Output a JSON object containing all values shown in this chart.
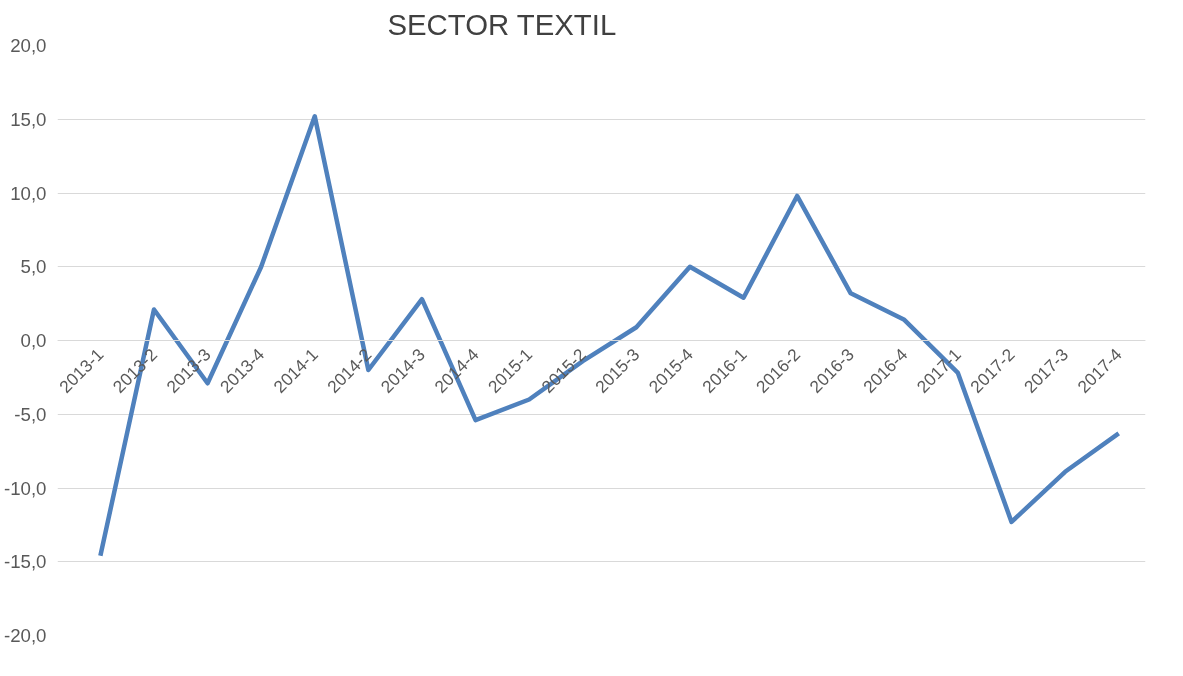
{
  "chart_data": {
    "type": "line",
    "title": "SECTOR TEXTIL",
    "categories": [
      "2013-1",
      "2013-2",
      "2013-3",
      "2013-4",
      "2014-1",
      "2014-2",
      "2014-3",
      "2014-4",
      "2015-1",
      "2015-2",
      "2015-3",
      "2015-4",
      "2016-1",
      "2016-2",
      "2016-3",
      "2016-4",
      "2017-1",
      "2017-2",
      "2017-3",
      "2017-4"
    ],
    "series": [
      {
        "color": "#4f81bd",
        "values": [
          -14.6,
          2.1,
          -2.9,
          5.0,
          15.2,
          -2.0,
          2.8,
          -5.4,
          -4.0,
          -1.4,
          0.9,
          5.0,
          2.9,
          9.8,
          3.2,
          1.4,
          -2.2,
          -12.3,
          -8.9,
          -6.3
        ]
      }
    ],
    "ylim": [
      -20,
      20
    ],
    "yticks": [
      {
        "value": -20,
        "label": "-20,0"
      },
      {
        "value": -15,
        "label": "-15,0"
      },
      {
        "value": -10,
        "label": "-10,0"
      },
      {
        "value": -5,
        "label": "-5,0"
      },
      {
        "value": 0,
        "label": "0,0"
      },
      {
        "value": 5,
        "label": "5,0"
      },
      {
        "value": 10,
        "label": "10,0"
      },
      {
        "value": 15,
        "label": "15,0"
      },
      {
        "value": 20,
        "label": "20,0"
      }
    ],
    "grid": "y",
    "marker": "none",
    "line_style": "solid"
  }
}
